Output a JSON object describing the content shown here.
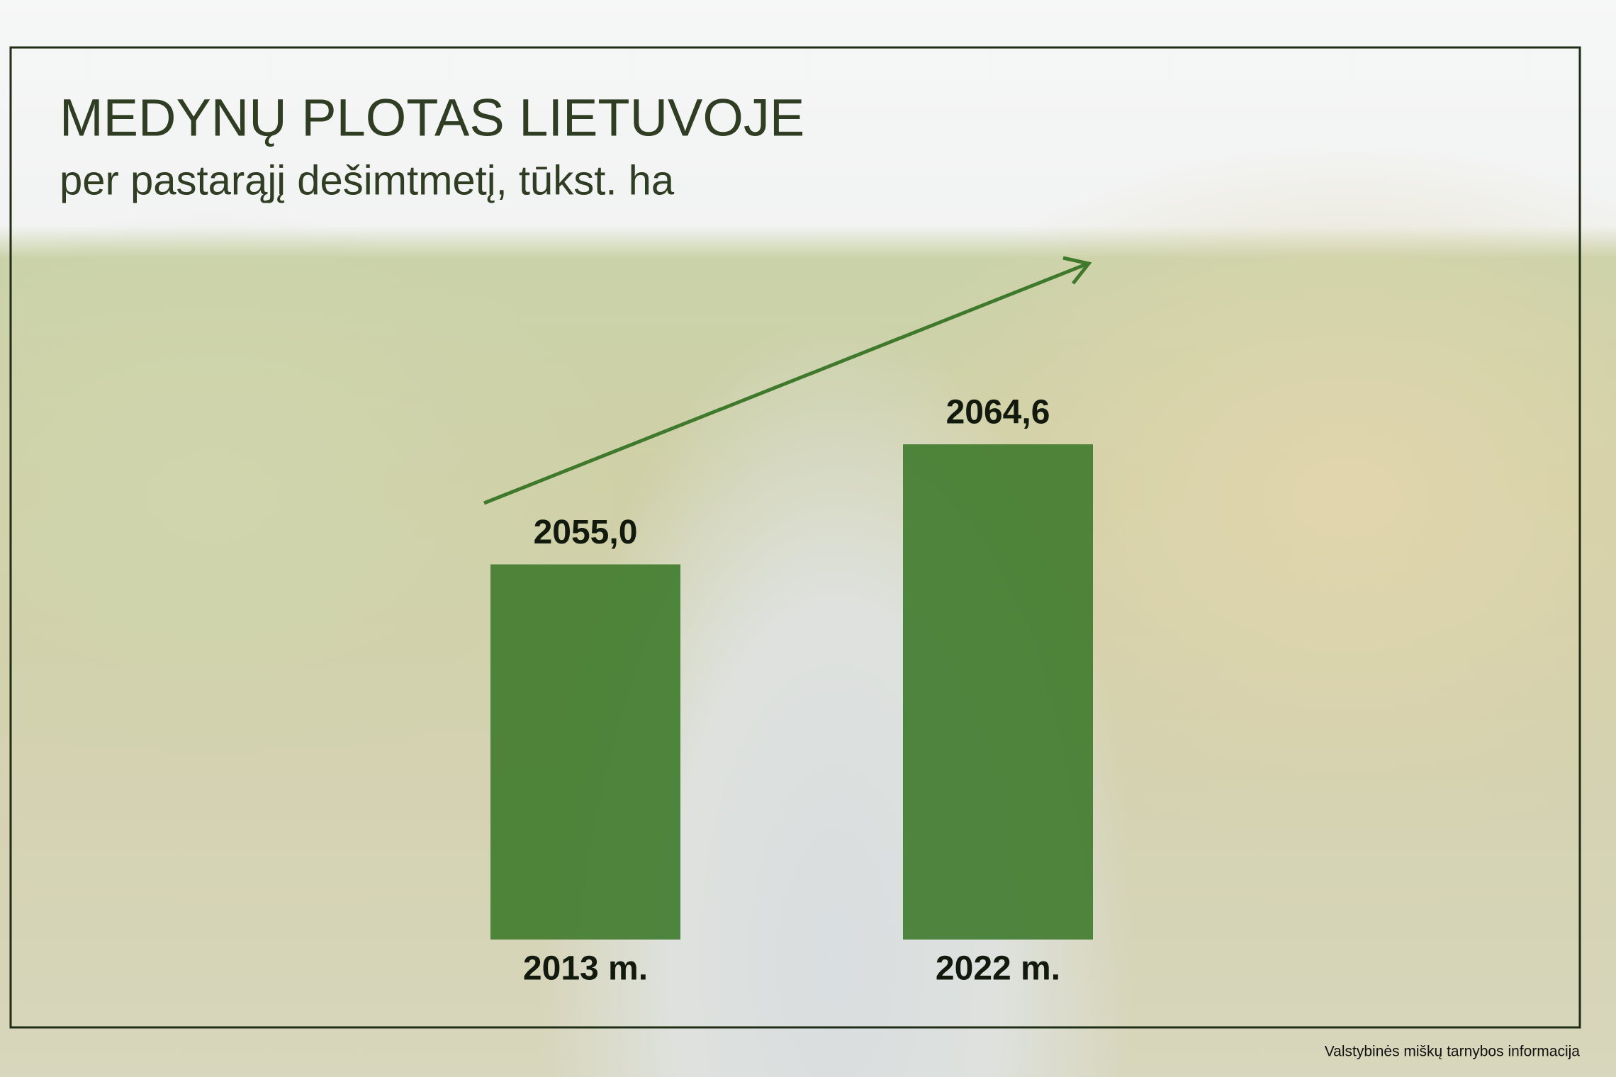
{
  "chart_data": {
    "type": "bar",
    "title": "MEDYNŲ PLOTAS LIETUVOJE",
    "subtitle": "per pastarąjį dešimtmetį, tūkst. ha",
    "categories": [
      "2013 m.",
      "2022 m."
    ],
    "values": [
      2055.0,
      2064.6
    ],
    "value_labels": [
      "2055,0",
      "2064,6"
    ],
    "color": "#3f7a2c",
    "ylim": [
      2025,
      2065
    ],
    "source": "Valstybinės miškų tarnybos informacija"
  }
}
